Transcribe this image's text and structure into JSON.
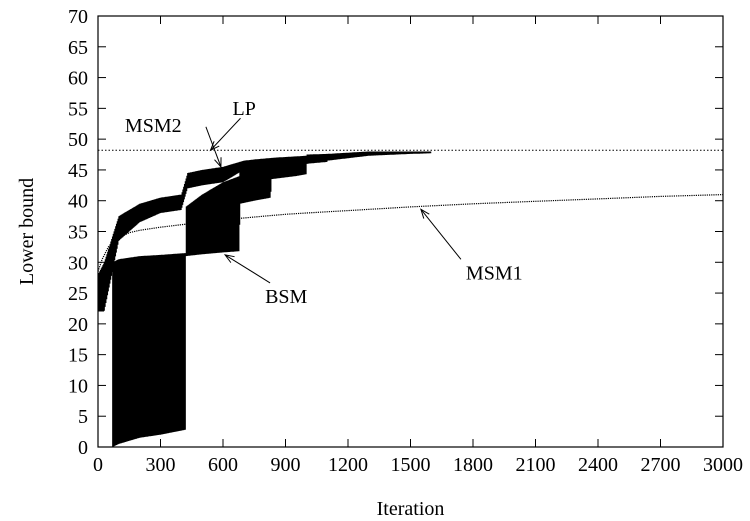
{
  "chart_data": {
    "type": "line",
    "title": "",
    "xlabel": "Iteration",
    "ylabel": "Lower bound",
    "xlim": [
      0,
      3000
    ],
    "ylim": [
      0,
      70
    ],
    "xticks": [
      0,
      300,
      600,
      900,
      1200,
      1500,
      1800,
      2100,
      2400,
      2700,
      3000
    ],
    "yticks": [
      0,
      5,
      10,
      15,
      20,
      25,
      30,
      35,
      40,
      45,
      50,
      55,
      60,
      65,
      70
    ],
    "grid": false,
    "legend": "none",
    "reference_lines": [
      {
        "name": "LP",
        "y": 48.2,
        "style": "dotted"
      }
    ],
    "series": [
      {
        "name": "MSM1",
        "style": "thin",
        "x": [
          0,
          20,
          50,
          100,
          150,
          200,
          300,
          400,
          500,
          600,
          700,
          800,
          900,
          1000,
          1200,
          1500,
          1800,
          2100,
          2400,
          2700,
          3000
        ],
        "y": [
          28.5,
          30.5,
          32.5,
          34.0,
          34.8,
          35.2,
          35.7,
          36.1,
          36.5,
          36.9,
          37.2,
          37.5,
          37.8,
          38.0,
          38.4,
          39.0,
          39.5,
          39.9,
          40.3,
          40.7,
          41.0
        ]
      },
      {
        "name": "MSM2",
        "style": "oscillating-band",
        "x": [
          0,
          30,
          100,
          200,
          300,
          400,
          430,
          500,
          600,
          700,
          750,
          850,
          1000,
          1100,
          1300,
          1500,
          1600
        ],
        "y_low": [
          22.0,
          22.0,
          33.5,
          36.5,
          38.0,
          38.5,
          42.0,
          42.5,
          43.0,
          45.0,
          45.0,
          45.5,
          46.0,
          46.5,
          47.3,
          47.6,
          47.7
        ],
        "y_high": [
          28.0,
          30.0,
          37.5,
          39.5,
          40.5,
          41.0,
          44.5,
          45.0,
          45.5,
          46.5,
          46.7,
          47.0,
          47.3,
          47.6,
          48.0,
          48.0,
          48.0
        ]
      },
      {
        "name": "BSM",
        "style": "oscillating-band",
        "x": [
          70,
          100,
          200,
          300,
          420,
          421,
          500,
          600,
          680,
          681,
          750,
          830,
          831,
          950,
          1000,
          1001,
          1100
        ],
        "y_low": [
          0.0,
          0.5,
          1.5,
          2.0,
          2.8,
          31.0,
          31.3,
          31.6,
          31.8,
          39.5,
          40.0,
          40.5,
          43.5,
          44.0,
          44.3,
          46.0,
          46.3
        ],
        "y_high": [
          30.0,
          30.5,
          31.0,
          31.2,
          31.5,
          39.0,
          41.0,
          43.0,
          44.0,
          45.5,
          46.0,
          46.3,
          46.8,
          47.0,
          47.1,
          47.5,
          47.6
        ]
      }
    ],
    "annotations": [
      {
        "text": "MSM2",
        "points_to": [
          590,
          45.5
        ]
      },
      {
        "text": "LP",
        "points_to": [
          540,
          48.2
        ]
      },
      {
        "text": "BSM",
        "points_to": [
          610,
          31.2
        ]
      },
      {
        "text": "MSM1",
        "points_to": [
          1550,
          38.6
        ]
      }
    ]
  }
}
